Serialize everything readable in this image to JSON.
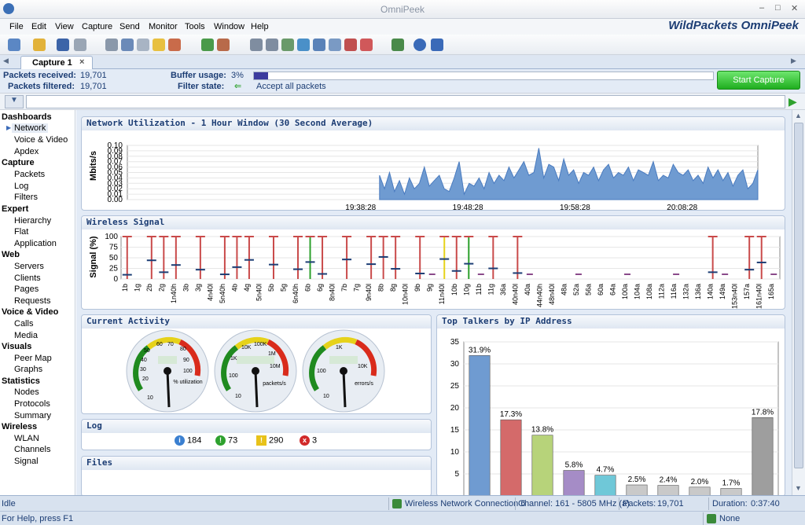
{
  "window": {
    "title": "OmniPeek",
    "brand": "WildPackets OmniPeek"
  },
  "menu": [
    "File",
    "Edit",
    "View",
    "Capture",
    "Send",
    "Monitor",
    "Tools",
    "Window",
    "Help"
  ],
  "tab": {
    "label": "Capture 1"
  },
  "stats": {
    "received_label": "Packets received:",
    "received_value": "19,701",
    "filtered_label": "Packets filtered:",
    "filtered_value": "19,701",
    "buffer_label": "Buffer usage:",
    "buffer_value": "3%",
    "buffer_fraction": 0.03,
    "filter_label": "Filter state:",
    "filter_value": "Accept all packets",
    "start_button": "Start Capture"
  },
  "sidebar": [
    {
      "header": "Dashboards",
      "items": [
        "Network",
        "Voice & Video",
        "Apdex"
      ]
    },
    {
      "header": "Capture",
      "items": [
        "Packets",
        "Log",
        "Filters"
      ]
    },
    {
      "header": "Expert",
      "items": [
        "Hierarchy",
        "Flat",
        "Application"
      ]
    },
    {
      "header": "Web",
      "items": [
        "Servers",
        "Clients",
        "Pages",
        "Requests"
      ]
    },
    {
      "header": "Voice & Video",
      "items": [
        "Calls",
        "Media"
      ]
    },
    {
      "header": "Visuals",
      "items": [
        "Peer Map",
        "Graphs"
      ]
    },
    {
      "header": "Statistics",
      "items": [
        "Nodes",
        "Protocols",
        "Summary"
      ]
    },
    {
      "header": "Wireless",
      "items": [
        "WLAN",
        "Channels",
        "Signal"
      ]
    }
  ],
  "panels": {
    "net_util": "Network Utilization - 1 Hour Window (30 Second Average)",
    "wireless": "Wireless Signal",
    "activity": "Current Activity",
    "talkers": "Top Talkers by IP Address",
    "log": "Log",
    "files": "Files"
  },
  "gauges": [
    {
      "label": "% utilization",
      "ticks": [
        "10",
        "20",
        "30",
        "40",
        "50",
        "60",
        "70",
        "80",
        "90",
        "100"
      ]
    },
    {
      "label": "packets/s",
      "ticks": [
        "10",
        "100",
        "1K",
        "10K",
        "100K",
        "1M",
        "10M"
      ]
    },
    {
      "label": "errors/s",
      "ticks": [
        "10",
        "100",
        "1K",
        "10K"
      ]
    }
  ],
  "log": {
    "info": "184",
    "ok": "73",
    "warn": "290",
    "error": "3"
  },
  "status": {
    "state": "Idle",
    "adapter": "Wireless Network Connection 6",
    "channel": "Channel: 161 - 5805 MHz (a)",
    "packets_label": "Packets:",
    "packets_value": "19,701",
    "duration_label": "Duration:",
    "duration_value": "0:37:40",
    "help": "For Help, press F1",
    "none": "None"
  },
  "chart_data": [
    {
      "type": "area",
      "ylabel": "Mbits/s",
      "ylim": [
        0,
        0.1
      ],
      "yticks": [
        "0.10",
        "0.09",
        "0.08",
        "0.07",
        "0.06",
        "0.05",
        "0.04",
        "0.03",
        "0.02",
        "0.01",
        "0.00"
      ],
      "xticks": [
        "19:38:28",
        "19:48:28",
        "19:58:28",
        "20:08:28"
      ],
      "values": [
        0.045,
        0.02,
        0.05,
        0.015,
        0.035,
        0.01,
        0.04,
        0.02,
        0.03,
        0.06,
        0.025,
        0.035,
        0.045,
        0.02,
        0.015,
        0.04,
        0.07,
        0.01,
        0.03,
        0.025,
        0.04,
        0.02,
        0.05,
        0.03,
        0.045,
        0.035,
        0.06,
        0.04,
        0.055,
        0.07,
        0.045,
        0.05,
        0.095,
        0.04,
        0.065,
        0.06,
        0.035,
        0.075,
        0.045,
        0.055,
        0.03,
        0.05,
        0.045,
        0.06,
        0.035,
        0.055,
        0.065,
        0.04,
        0.05,
        0.045,
        0.06,
        0.035,
        0.055,
        0.05,
        0.045,
        0.07,
        0.035,
        0.045,
        0.04,
        0.065,
        0.05,
        0.045,
        0.055,
        0.035,
        0.045,
        0.03,
        0.06,
        0.04,
        0.055,
        0.035,
        0.05,
        0.025,
        0.045,
        0.055,
        0.02,
        0.03,
        0.055
      ]
    },
    {
      "type": "bar",
      "ylabel": "Signal (%)",
      "ylim": [
        0,
        100
      ],
      "categories": [
        "1b",
        "1g",
        "2b",
        "2g",
        "1n40h",
        "3b",
        "3g",
        "4n40l",
        "5n40h",
        "4b",
        "4g",
        "5n40l",
        "5b",
        "5g",
        "6n40h",
        "6b",
        "6g",
        "8n40l",
        "7b",
        "7g",
        "9n40l",
        "8b",
        "8g",
        "10n40l",
        "9b",
        "9g",
        "11n40l",
        "10b",
        "10g",
        "11b",
        "11g",
        "36a",
        "40n40l",
        "40a",
        "44n40h",
        "48n40l",
        "48a",
        "52a",
        "56a",
        "60a",
        "64a",
        "100a",
        "104a",
        "108a",
        "112a",
        "116a",
        "132a",
        "136a",
        "140a",
        "149a",
        "153n40l",
        "157a",
        "161n40l",
        "165a"
      ]
    },
    {
      "type": "bar",
      "ylim": [
        0,
        35
      ],
      "yticks": [
        "35",
        "30",
        "25",
        "20",
        "15",
        "10",
        "5"
      ],
      "values": [
        31.9,
        17.3,
        13.8,
        5.8,
        4.7,
        2.5,
        2.4,
        2.0,
        1.7,
        17.8
      ],
      "labels": [
        "31.9%",
        "17.3%",
        "13.8%",
        "5.8%",
        "4.7%",
        "2.5%",
        "2.4%",
        "2.0%",
        "1.7%",
        "17.8%"
      ],
      "colors": [
        "#6f9bd1",
        "#d46a6a",
        "#b7d37a",
        "#a58cc6",
        "#6fc8d8",
        "#c9c9c9",
        "#c9c9c9",
        "#c9c9c9",
        "#c9c9c9",
        "#9e9e9e"
      ]
    }
  ]
}
